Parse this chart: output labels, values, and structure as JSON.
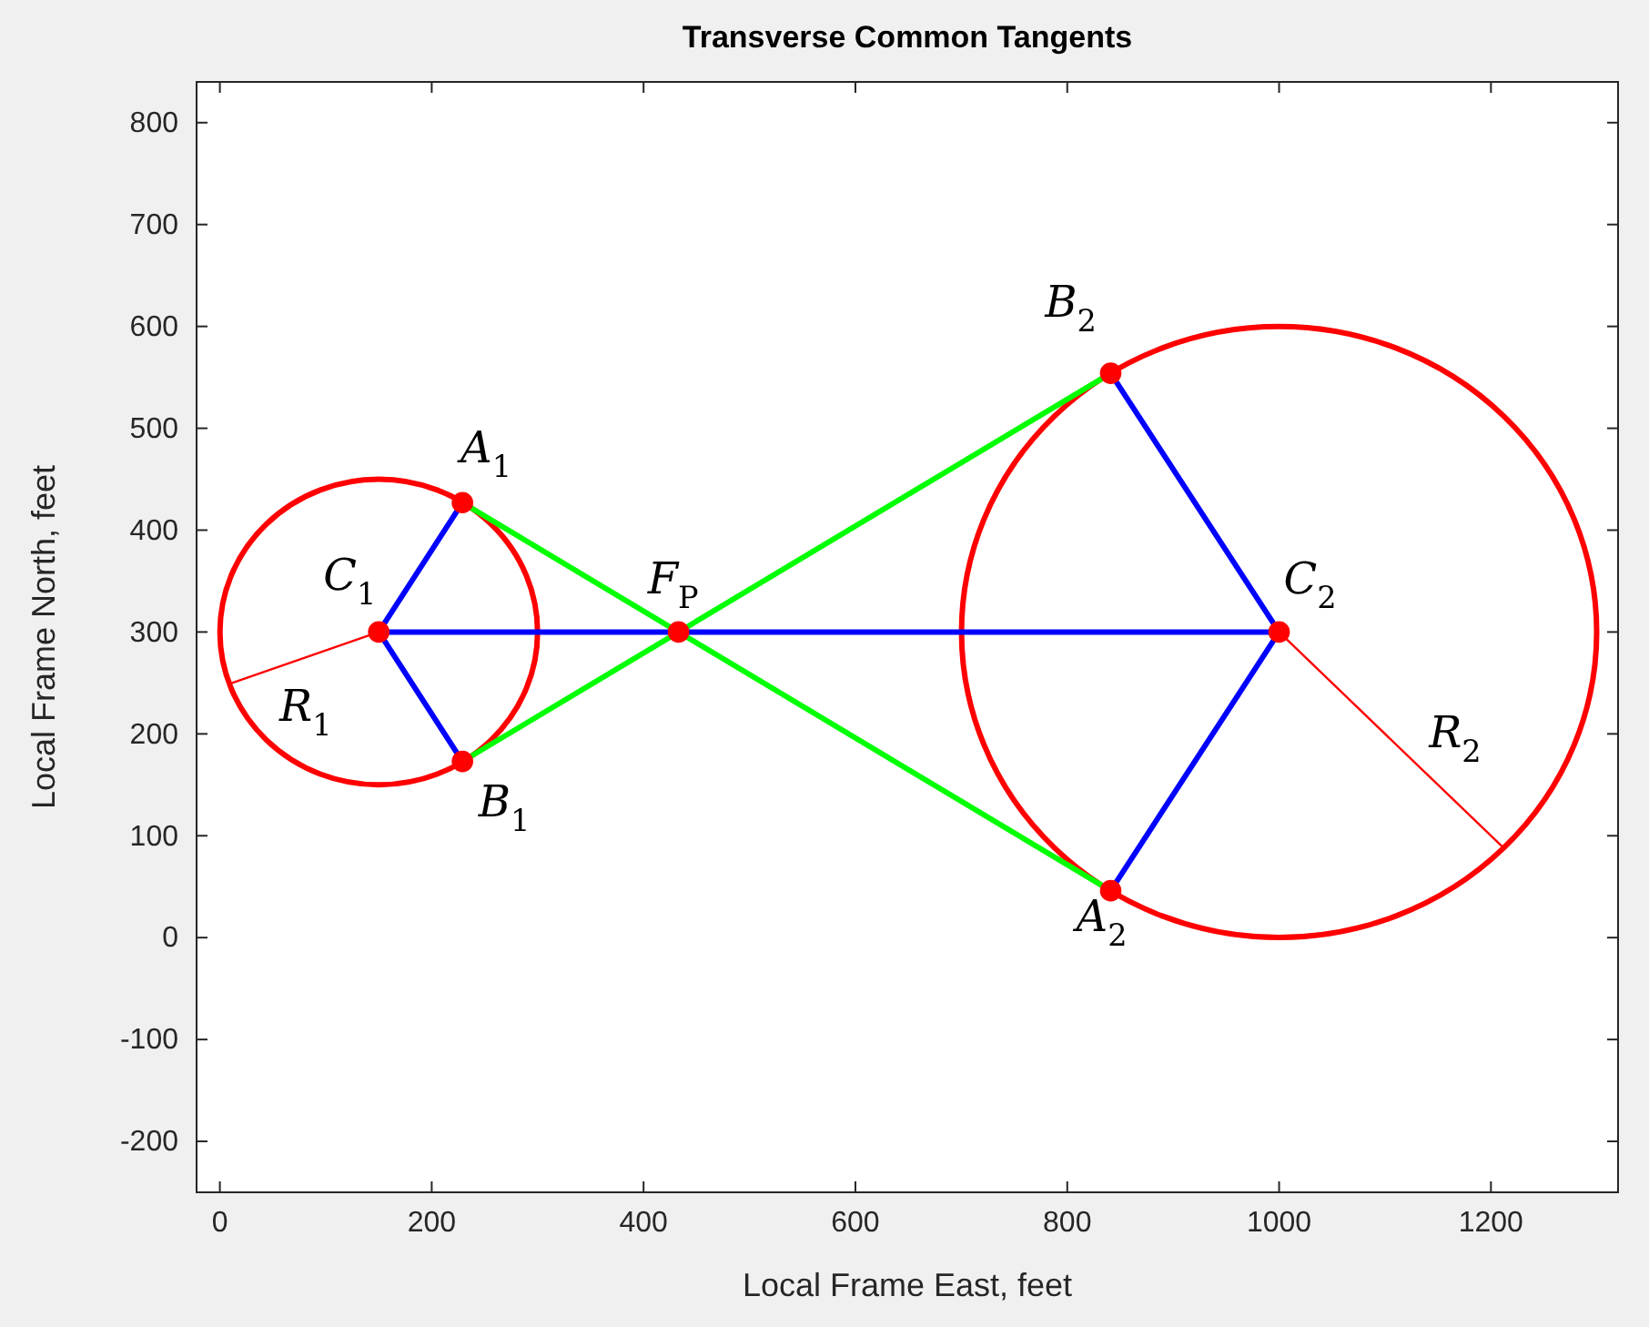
{
  "chart_data": {
    "type": "line",
    "title": "Transverse Common Tangents",
    "xlabel": "Local Frame East, feet",
    "ylabel": "Local Frame North, feet",
    "xlim": [
      -22,
      1320
    ],
    "ylim": [
      -250,
      840
    ],
    "xticks": [
      0,
      200,
      400,
      600,
      800,
      1000,
      1200
    ],
    "yticks": [
      -200,
      -100,
      0,
      100,
      200,
      300,
      400,
      500,
      600,
      700,
      800
    ],
    "grid": false,
    "series": [
      {
        "color": "#0000ff",
        "x": [
          229,
          150,
          229
        ],
        "values": [
          427,
          300,
          173
        ]
      },
      {
        "color": "#0000ff",
        "x": [
          150,
          1000
        ],
        "values": [
          300,
          300
        ]
      },
      {
        "color": "#0000ff",
        "x": [
          841,
          1000,
          841
        ],
        "values": [
          554,
          300,
          46
        ]
      },
      {
        "color": "#00ff00",
        "x": [
          229,
          841
        ],
        "values": [
          427,
          46
        ]
      },
      {
        "color": "#00ff00",
        "x": [
          229,
          841
        ],
        "values": [
          173,
          554
        ]
      },
      {
        "color": "#ff0000",
        "x": [
          150,
          9
        ],
        "values": [
          300,
          249
        ]
      },
      {
        "color": "#ff0000",
        "x": [
          1000,
          1212
        ],
        "values": [
          300,
          88
        ]
      },
      {
        "type": "scatter",
        "marker": "circle",
        "color": "#ff0000",
        "x": [
          150,
          229,
          229,
          433,
          1000,
          841,
          841
        ],
        "values": [
          300,
          427,
          173,
          300,
          300,
          554,
          46
        ]
      }
    ],
    "annotations": [
      {
        "text": "C$_{1}$",
        "x": 150,
        "y": 300
      },
      {
        "text": "A$_{1}$",
        "x": 229,
        "y": 427
      },
      {
        "text": "B$_{1}$",
        "x": 229,
        "y": 173
      },
      {
        "text": "F$_{P}$",
        "x": 433,
        "y": 300
      },
      {
        "text": "B$_{2}$",
        "x": 841,
        "y": 554
      },
      {
        "text": "C$_{2}$",
        "x": 1000,
        "y": 300
      },
      {
        "text": "A$_{2}$",
        "x": 841,
        "y": 46
      },
      {
        "text": "R$_{1}$",
        "x": 81,
        "y": 275
      },
      {
        "text": "R$_{2}$",
        "x": 1106,
        "y": 194
      }
    ]
  }
}
